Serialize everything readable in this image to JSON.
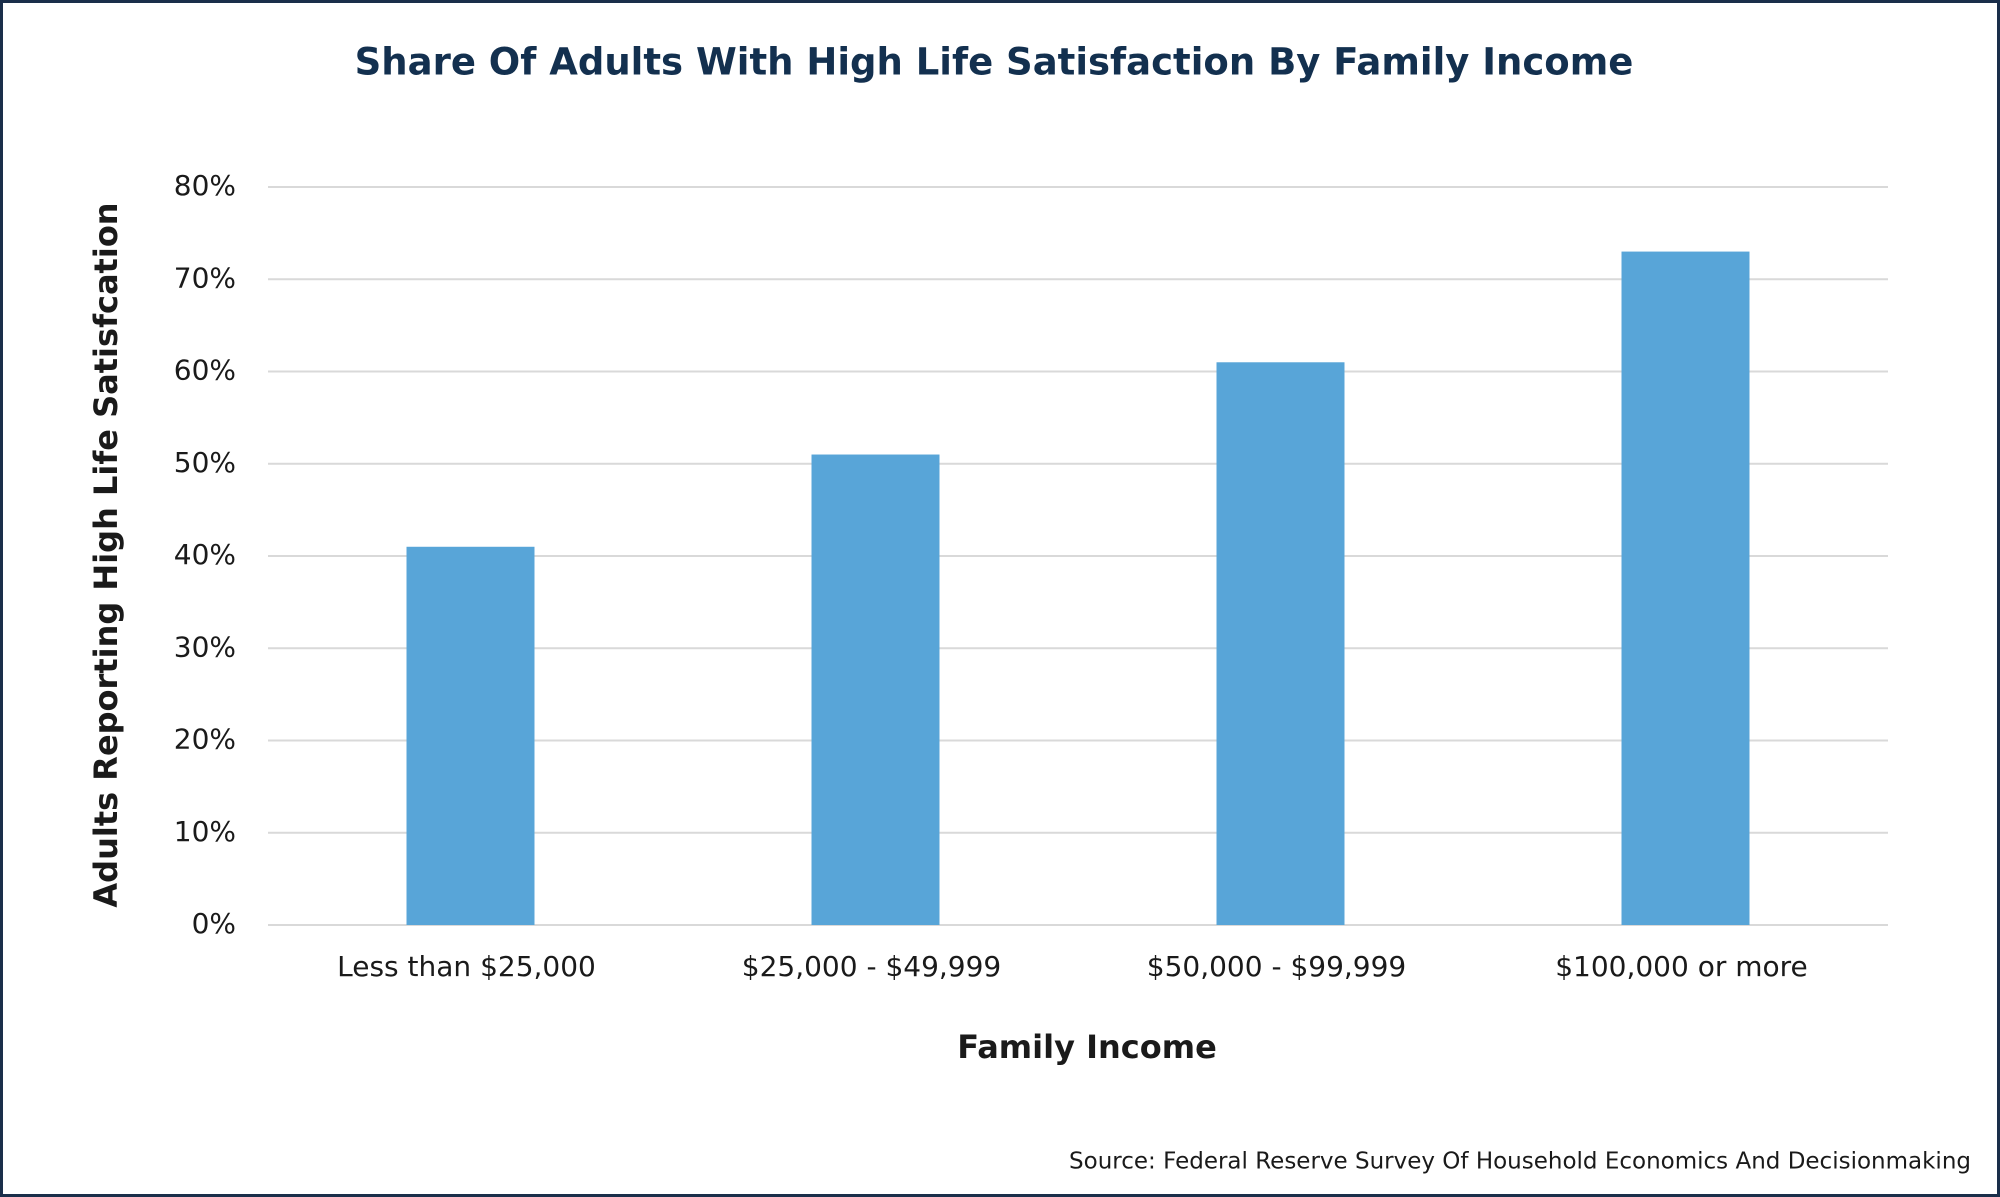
{
  "chart_data": {
    "type": "bar",
    "title": "Share Of Adults With High Life Satisfaction By Family Income",
    "x_label": "Family Income",
    "y_label": "Adults Reporting High Life Satisfcation",
    "source": "Source: Federal Reserve Survey Of Household Economics And Decisionmaking",
    "categories": [
      "Less than $25,000",
      "$25,000 - $49,999",
      "$50,000 - $99,999",
      "$100,000 or more"
    ],
    "values": [
      41,
      51,
      61,
      73
    ],
    "color": "#58a5d8",
    "ylim": [
      0,
      80
    ],
    "yticks": [
      {
        "value": 0,
        "label": "0%"
      },
      {
        "value": 10,
        "label": "10%"
      },
      {
        "value": 20,
        "label": "20%"
      },
      {
        "value": 30,
        "label": "30%"
      },
      {
        "value": 40,
        "label": "40%"
      },
      {
        "value": 50,
        "label": "50%"
      },
      {
        "value": 60,
        "label": "60%"
      },
      {
        "value": 70,
        "label": "70%"
      },
      {
        "value": 80,
        "label": "80%"
      }
    ],
    "grid": true
  }
}
